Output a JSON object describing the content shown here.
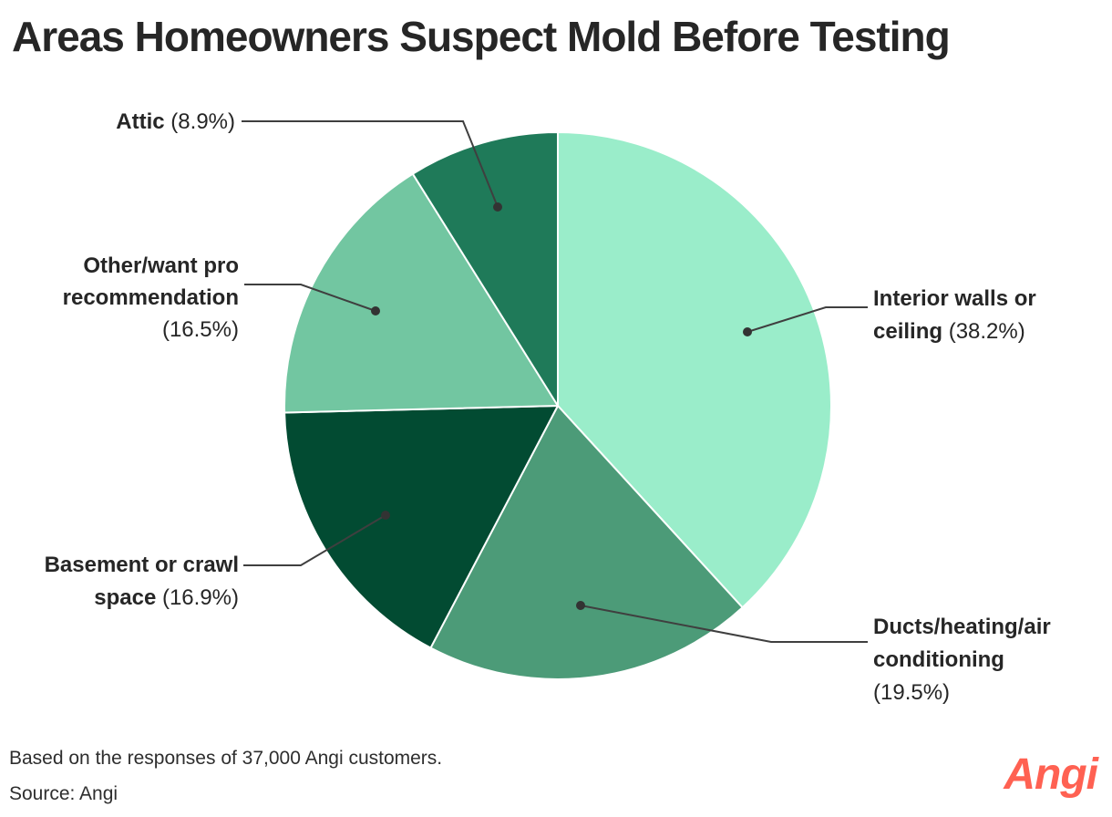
{
  "title": "Areas Homeowners Suspect Mold Before Testing",
  "chart_data": {
    "type": "pie",
    "title": "Areas Homeowners Suspect Mold Before Testing",
    "units": "percent",
    "start_angle_deg": 0,
    "direction": "clockwise",
    "keys": [
      "interior",
      "ducts",
      "basement",
      "other",
      "attic"
    ],
    "categories": [
      "Interior walls or ceiling",
      "Ducts/heating/air conditioning",
      "Basement or crawl space",
      "Other/want pro recommendation",
      "Attic"
    ],
    "values": [
      38.2,
      19.5,
      16.9,
      16.5,
      8.9
    ],
    "slice_colors": [
      "#9AEDCA",
      "#4C9B78",
      "#024B32",
      "#72C6A1",
      "#1F7A59"
    ],
    "slice_divider_color": "#FFFFFF",
    "legend_position": "callout-labels",
    "label_text_color": "#262626",
    "leader_line_color": "#3F3F3F"
  },
  "labels": {
    "attic": {
      "lines": [
        {
          "bold": "Attic",
          "normal": " (8.9%)"
        }
      ]
    },
    "other": {
      "lines": [
        {
          "bold": "Other/want pro"
        },
        {
          "bold": "recommendation"
        },
        {
          "normal": "(16.5%)"
        }
      ]
    },
    "interior": {
      "lines": [
        {
          "bold": "Interior walls or"
        },
        {
          "bold": "ceiling",
          "normal": " (38.2%)"
        }
      ]
    },
    "basement": {
      "lines": [
        {
          "bold": "Basement or crawl"
        },
        {
          "bold": "space",
          "normal": " (16.9%)"
        }
      ]
    },
    "ducts": {
      "lines": [
        {
          "bold": "Ducts/heating/air"
        },
        {
          "bold": "conditioning"
        },
        {
          "normal": "(19.5%)"
        }
      ]
    }
  },
  "footer": {
    "note": "Based on the responses of 37,000 Angi customers.",
    "source": "Source: Angi"
  },
  "logo": {
    "text": "Angi",
    "color": "#FF6152"
  }
}
